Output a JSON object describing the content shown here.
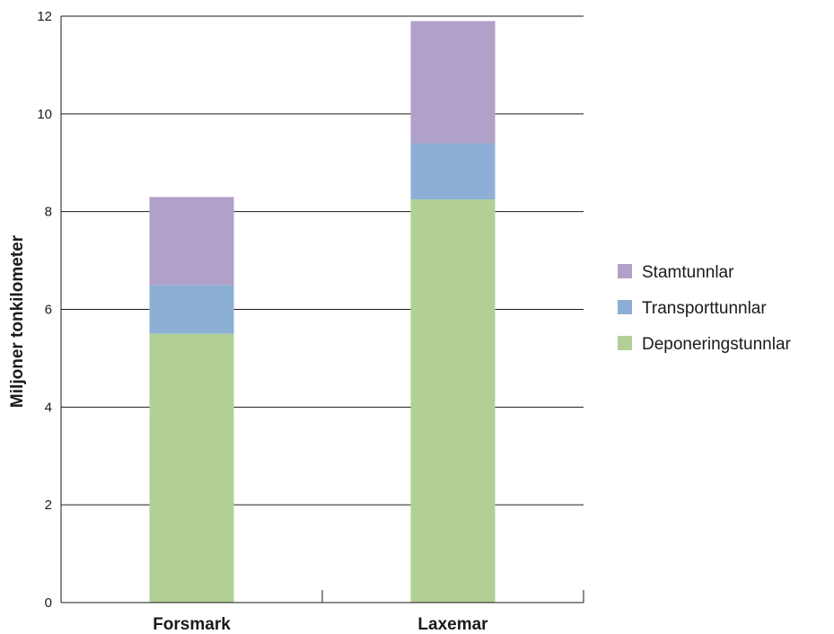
{
  "chart_data": {
    "type": "bar",
    "stacked": true,
    "title": "",
    "xlabel": "",
    "ylabel": "Miljoner tonkilometer",
    "ylim": [
      0,
      12
    ],
    "yticks": [
      0,
      2,
      4,
      6,
      8,
      10,
      12
    ],
    "grid": true,
    "legend_position": "right",
    "categories": [
      "Forsmark",
      "Laxemar"
    ],
    "series": [
      {
        "name": "Deponeringstunnlar",
        "color": "#b2d096",
        "values": [
          5.5,
          8.25
        ]
      },
      {
        "name": "Transporttunnlar",
        "color": "#8eafd5",
        "values": [
          1.0,
          1.15
        ]
      },
      {
        "name": "Stamtunnlar",
        "color": "#b1a1c8",
        "values": [
          1.8,
          2.5
        ]
      }
    ]
  }
}
